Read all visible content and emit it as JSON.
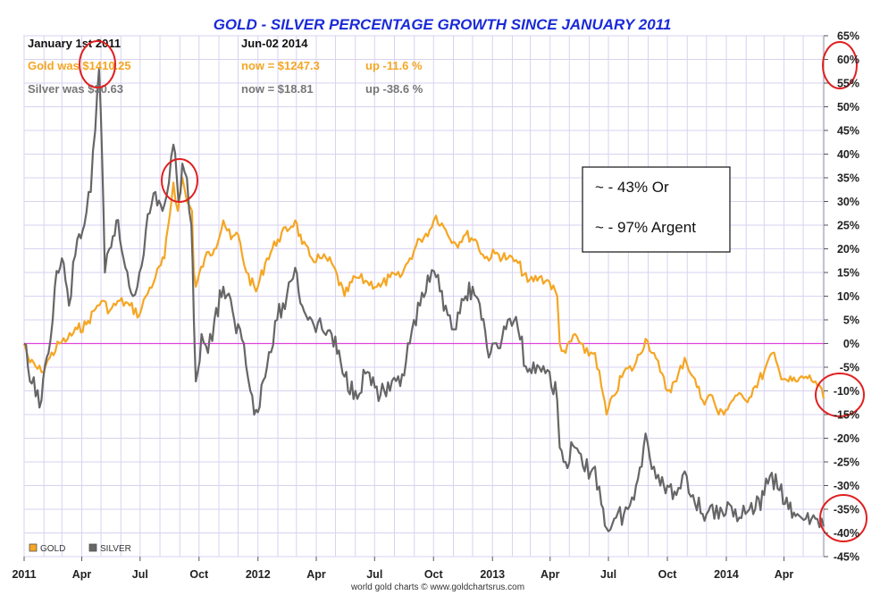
{
  "chart_data": {
    "type": "line",
    "title": "GOLD - SILVER PERCENTAGE GROWTH SINCE JANUARY 2011",
    "header": {
      "start_label": "January 1st 2011",
      "end_label": "Jun-02  2014",
      "gold_was": "Gold was $1410.25",
      "gold_now": "now = $1247.3",
      "gold_change": "up -11.6 %",
      "silver_was": "Silver was $30.63",
      "silver_now": "now = $18.81",
      "silver_change": "up -38.6 %"
    },
    "x_range": [
      "2011-01-01",
      "2014-06-02"
    ],
    "x_ticks": [
      {
        "date": "2011-01-01",
        "label": "2011"
      },
      {
        "date": "2011-04-01",
        "label": "Apr"
      },
      {
        "date": "2011-07-01",
        "label": "Jul"
      },
      {
        "date": "2011-10-01",
        "label": "Oct"
      },
      {
        "date": "2012-01-01",
        "label": "2012"
      },
      {
        "date": "2012-04-01",
        "label": "Apr"
      },
      {
        "date": "2012-07-01",
        "label": "Jul"
      },
      {
        "date": "2012-10-01",
        "label": "Oct"
      },
      {
        "date": "2013-01-01",
        "label": "2013"
      },
      {
        "date": "2013-04-01",
        "label": "Apr"
      },
      {
        "date": "2013-07-01",
        "label": "Jul"
      },
      {
        "date": "2013-10-01",
        "label": "Oct"
      },
      {
        "date": "2014-01-01",
        "label": "2014"
      },
      {
        "date": "2014-04-01",
        "label": "Apr"
      }
    ],
    "ylim": [
      -45,
      65
    ],
    "y_ticks": [
      65,
      60,
      55,
      50,
      45,
      40,
      35,
      30,
      25,
      20,
      15,
      10,
      5,
      0,
      -5,
      -10,
      -15,
      -20,
      -25,
      -30,
      -35,
      -40,
      -45
    ],
    "y_tick_labels": [
      "65%",
      "60%",
      "55%",
      "50%",
      "45%",
      "40%",
      "35%",
      "30%",
      "25%",
      "20%",
      "15%",
      "10%",
      "5%",
      "0%",
      "-5%",
      "-10%",
      "-15%",
      "-20%",
      "-25%",
      "-30%",
      "-35%",
      "-40%",
      "-45%"
    ],
    "grid": true,
    "zero_line_color": "#dd44dd",
    "series": [
      {
        "name": "GOLD",
        "color": "#f5a623",
        "points": [
          [
            "2011-01-01",
            0
          ],
          [
            "2011-01-10",
            -4
          ],
          [
            "2011-01-28",
            -6
          ],
          [
            "2011-02-10",
            -3
          ],
          [
            "2011-02-25",
            0
          ],
          [
            "2011-03-10",
            1
          ],
          [
            "2011-03-25",
            3
          ],
          [
            "2011-04-08",
            4
          ],
          [
            "2011-04-25",
            8
          ],
          [
            "2011-05-02",
            9
          ],
          [
            "2011-05-15",
            7
          ],
          [
            "2011-05-30",
            9
          ],
          [
            "2011-06-15",
            8
          ],
          [
            "2011-06-30",
            6
          ],
          [
            "2011-07-10",
            10
          ],
          [
            "2011-07-25",
            14
          ],
          [
            "2011-08-08",
            18
          ],
          [
            "2011-08-22",
            34
          ],
          [
            "2011-08-29",
            28
          ],
          [
            "2011-09-05",
            35
          ],
          [
            "2011-09-12",
            30
          ],
          [
            "2011-09-20",
            28
          ],
          [
            "2011-09-23",
            15
          ],
          [
            "2011-09-26",
            12
          ],
          [
            "2011-10-10",
            18
          ],
          [
            "2011-10-25",
            20
          ],
          [
            "2011-11-08",
            26
          ],
          [
            "2011-11-20",
            22
          ],
          [
            "2011-12-01",
            23
          ],
          [
            "2011-12-14",
            15
          ],
          [
            "2011-12-29",
            11
          ],
          [
            "2012-01-15",
            18
          ],
          [
            "2012-02-01",
            22
          ],
          [
            "2012-02-28",
            26
          ],
          [
            "2012-03-10",
            21
          ],
          [
            "2012-03-25",
            18
          ],
          [
            "2012-04-10",
            18
          ],
          [
            "2012-04-25",
            17
          ],
          [
            "2012-05-15",
            10
          ],
          [
            "2012-06-01",
            14
          ],
          [
            "2012-06-20",
            13
          ],
          [
            "2012-07-10",
            12
          ],
          [
            "2012-07-25",
            14
          ],
          [
            "2012-08-10",
            14
          ],
          [
            "2012-08-25",
            18
          ],
          [
            "2012-09-10",
            22
          ],
          [
            "2012-09-25",
            24
          ],
          [
            "2012-10-05",
            27
          ],
          [
            "2012-10-20",
            24
          ],
          [
            "2012-11-05",
            21
          ],
          [
            "2012-11-20",
            23
          ],
          [
            "2012-12-05",
            22
          ],
          [
            "2012-12-20",
            18
          ],
          [
            "2013-01-05",
            19
          ],
          [
            "2013-01-25",
            18
          ],
          [
            "2013-02-10",
            17
          ],
          [
            "2013-02-25",
            13
          ],
          [
            "2013-03-15",
            14
          ],
          [
            "2013-03-31",
            13
          ],
          [
            "2013-04-12",
            10
          ],
          [
            "2013-04-16",
            0
          ],
          [
            "2013-04-25",
            -2
          ],
          [
            "2013-05-10",
            2
          ],
          [
            "2013-05-25",
            -2
          ],
          [
            "2013-06-10",
            -2
          ],
          [
            "2013-06-20",
            -9
          ],
          [
            "2013-06-28",
            -15
          ],
          [
            "2013-07-10",
            -11
          ],
          [
            "2013-07-25",
            -6
          ],
          [
            "2013-08-10",
            -5
          ],
          [
            "2013-08-28",
            1
          ],
          [
            "2013-09-10",
            -2
          ],
          [
            "2013-09-20",
            -6
          ],
          [
            "2013-10-01",
            -10
          ],
          [
            "2013-10-15",
            -8
          ],
          [
            "2013-10-28",
            -3
          ],
          [
            "2013-11-10",
            -7
          ],
          [
            "2013-11-25",
            -12
          ],
          [
            "2013-12-10",
            -11
          ],
          [
            "2013-12-20",
            -15
          ],
          [
            "2013-12-31",
            -14
          ],
          [
            "2014-01-15",
            -11
          ],
          [
            "2014-01-31",
            -12
          ],
          [
            "2014-02-15",
            -9
          ],
          [
            "2014-03-01",
            -6
          ],
          [
            "2014-03-14",
            -2
          ],
          [
            "2014-03-25",
            -6
          ],
          [
            "2014-04-08",
            -8
          ],
          [
            "2014-04-22",
            -8
          ],
          [
            "2014-05-05",
            -7
          ],
          [
            "2014-05-20",
            -8
          ],
          [
            "2014-06-02",
            -11.6
          ]
        ]
      },
      {
        "name": "SILVER",
        "color": "#666666",
        "points": [
          [
            "2011-01-01",
            0
          ],
          [
            "2011-01-10",
            -8
          ],
          [
            "2011-01-28",
            -12
          ],
          [
            "2011-02-08",
            -2
          ],
          [
            "2011-02-18",
            12
          ],
          [
            "2011-03-01",
            18
          ],
          [
            "2011-03-12",
            8
          ],
          [
            "2011-03-25",
            22
          ],
          [
            "2011-04-05",
            25
          ],
          [
            "2011-04-15",
            32
          ],
          [
            "2011-04-22",
            45
          ],
          [
            "2011-04-28",
            58
          ],
          [
            "2011-05-03",
            38
          ],
          [
            "2011-05-07",
            15
          ],
          [
            "2011-05-14",
            20
          ],
          [
            "2011-05-25",
            26
          ],
          [
            "2011-06-05",
            18
          ],
          [
            "2011-06-20",
            10
          ],
          [
            "2011-06-30",
            15
          ],
          [
            "2011-07-10",
            24
          ],
          [
            "2011-07-25",
            32
          ],
          [
            "2011-08-05",
            28
          ],
          [
            "2011-08-15",
            34
          ],
          [
            "2011-08-22",
            42
          ],
          [
            "2011-08-30",
            30
          ],
          [
            "2011-09-05",
            38
          ],
          [
            "2011-09-12",
            35
          ],
          [
            "2011-09-19",
            25
          ],
          [
            "2011-09-23",
            5
          ],
          [
            "2011-09-26",
            -8
          ],
          [
            "2011-10-05",
            2
          ],
          [
            "2011-10-15",
            -2
          ],
          [
            "2011-10-25",
            5
          ],
          [
            "2011-11-08",
            12
          ],
          [
            "2011-11-25",
            5
          ],
          [
            "2011-12-10",
            0
          ],
          [
            "2011-12-20",
            -10
          ],
          [
            "2011-12-29",
            -14
          ],
          [
            "2012-01-15",
            -5
          ],
          [
            "2012-01-31",
            5
          ],
          [
            "2012-02-15",
            10
          ],
          [
            "2012-02-28",
            16
          ],
          [
            "2012-03-10",
            8
          ],
          [
            "2012-03-25",
            5
          ],
          [
            "2012-04-10",
            3
          ],
          [
            "2012-04-25",
            2
          ],
          [
            "2012-05-15",
            -7
          ],
          [
            "2012-06-01",
            -10
          ],
          [
            "2012-06-20",
            -6
          ],
          [
            "2012-07-10",
            -11
          ],
          [
            "2012-07-25",
            -10
          ],
          [
            "2012-08-10",
            -9
          ],
          [
            "2012-08-25",
            0
          ],
          [
            "2012-09-10",
            8
          ],
          [
            "2012-09-25",
            13
          ],
          [
            "2012-10-05",
            14
          ],
          [
            "2012-10-20",
            8
          ],
          [
            "2012-11-05",
            3
          ],
          [
            "2012-11-20",
            10
          ],
          [
            "2012-12-01",
            12
          ],
          [
            "2012-12-15",
            5
          ],
          [
            "2012-12-29",
            -2
          ],
          [
            "2013-01-10",
            -1
          ],
          [
            "2013-01-25",
            5
          ],
          [
            "2013-02-10",
            3
          ],
          [
            "2013-02-25",
            -6
          ],
          [
            "2013-03-15",
            -5
          ],
          [
            "2013-03-31",
            -6
          ],
          [
            "2013-04-12",
            -12
          ],
          [
            "2013-04-16",
            -22
          ],
          [
            "2013-04-25",
            -25
          ],
          [
            "2013-05-10",
            -22
          ],
          [
            "2013-05-25",
            -27
          ],
          [
            "2013-06-10",
            -26
          ],
          [
            "2013-06-20",
            -34
          ],
          [
            "2013-06-28",
            -39
          ],
          [
            "2013-07-10",
            -37
          ],
          [
            "2013-07-25",
            -36
          ],
          [
            "2013-08-10",
            -33
          ],
          [
            "2013-08-28",
            -19
          ],
          [
            "2013-09-10",
            -26
          ],
          [
            "2013-09-20",
            -30
          ],
          [
            "2013-10-01",
            -30
          ],
          [
            "2013-10-15",
            -32
          ],
          [
            "2013-10-28",
            -27
          ],
          [
            "2013-11-10",
            -32
          ],
          [
            "2013-11-25",
            -36
          ],
          [
            "2013-12-10",
            -34
          ],
          [
            "2013-12-20",
            -37
          ],
          [
            "2013-12-31",
            -36
          ],
          [
            "2014-01-15",
            -35
          ],
          [
            "2014-01-31",
            -36
          ],
          [
            "2014-02-15",
            -35
          ],
          [
            "2014-03-01",
            -32
          ],
          [
            "2014-03-10",
            -28
          ],
          [
            "2014-03-25",
            -31
          ],
          [
            "2014-04-08",
            -35
          ],
          [
            "2014-04-22",
            -36
          ],
          [
            "2014-05-05",
            -37
          ],
          [
            "2014-05-20",
            -37
          ],
          [
            "2014-06-02",
            -38.6
          ]
        ]
      }
    ],
    "legend": [
      "GOLD",
      "SILVER"
    ],
    "legend_position": "bottom-left",
    "credit": "world gold charts © www.goldchartsrus.com",
    "annotation_box": {
      "lines": [
        "~ - 43% Or",
        "~ - 97% Argent"
      ]
    },
    "highlight_color": "#e02020",
    "title_color": "#1a2ad8"
  }
}
